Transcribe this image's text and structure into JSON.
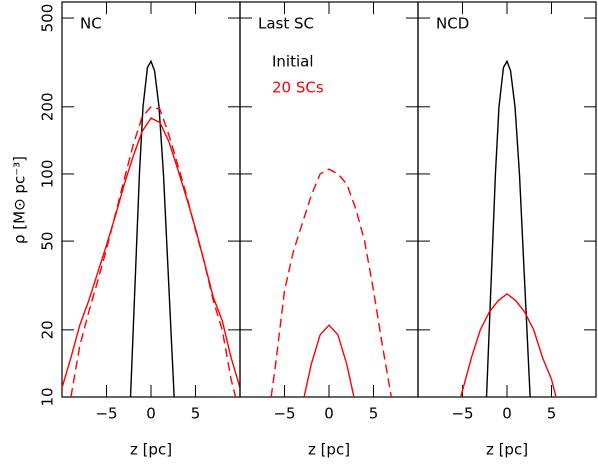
{
  "chart_data": [
    {
      "type": "line",
      "title": "NC",
      "xlabel": "z [pc]",
      "ylabel": "ρ [M⊙ pc⁻³]",
      "xlim": [
        -10,
        10
      ],
      "xticks": [
        {
          "value": -5,
          "label": "−5"
        },
        0,
        5
      ],
      "ylim": [
        10,
        590
      ],
      "yticks": [
        10,
        20,
        50,
        100,
        200,
        500
      ],
      "ylog": true,
      "series": [
        {
          "color": "#000000",
          "x": [
            -2.3,
            -1.3,
            -0.9,
            -0.4,
            0,
            0.4,
            0.9,
            1.4,
            2.6
          ],
          "values": [
            10,
            100,
            200,
            300,
            320,
            290,
            200,
            100,
            10
          ]
        },
        {
          "color": "#ff0000",
          "x": [
            -10,
            -9,
            -8,
            -7,
            -6,
            -5,
            -4,
            -3,
            -2,
            -1,
            0,
            1,
            2,
            3,
            4,
            5,
            6,
            7,
            8,
            9,
            10
          ],
          "values": [
            11,
            15,
            21,
            27,
            36,
            48,
            65,
            90,
            120,
            155,
            178,
            170,
            140,
            105,
            78,
            57,
            40,
            28,
            22,
            15,
            11
          ]
        },
        {
          "color": "#ff0000",
          "dash": true,
          "x": [
            -9,
            -8,
            -7,
            -6,
            -5,
            -4,
            -3,
            -2,
            -1,
            0,
            1,
            2,
            3,
            4,
            5,
            6,
            7,
            8,
            9,
            9.5
          ],
          "values": [
            10,
            17,
            24,
            33,
            46,
            66,
            95,
            135,
            180,
            200,
            195,
            150,
            110,
            80,
            56,
            40,
            27,
            20,
            12,
            10
          ]
        }
      ]
    },
    {
      "type": "line",
      "title": "Last SC",
      "xlabel": "z [pc]",
      "xlim": [
        -10,
        10
      ],
      "xticks": [
        {
          "value": -5,
          "label": "−5"
        },
        0,
        5
      ],
      "ylim": [
        10,
        590
      ],
      "yticks": [
        10,
        20,
        50,
        100,
        200,
        500
      ],
      "ylog": true,
      "legend": "upper left",
      "series": [
        {
          "name": "Initial",
          "color": "#000000",
          "x": [],
          "values": []
        },
        {
          "name": "20 SCs",
          "color": "#ff0000",
          "x": [
            -2.8,
            -2,
            -1,
            0,
            1,
            2,
            2.8
          ],
          "values": [
            10,
            14,
            19,
            21,
            19,
            14,
            10
          ]
        },
        {
          "color": "#ff0000",
          "dash": true,
          "x": [
            -6.5,
            -6,
            -5,
            -4,
            -3,
            -2,
            -1,
            0,
            1,
            2,
            3,
            4,
            5,
            6,
            7
          ],
          "values": [
            10,
            14,
            30,
            45,
            60,
            80,
            100,
            105,
            100,
            90,
            70,
            50,
            30,
            17,
            10
          ]
        }
      ]
    },
    {
      "type": "line",
      "title": "NCD",
      "xlabel": "z [pc]",
      "xlim": [
        -10,
        10
      ],
      "xticks": [
        {
          "value": -5,
          "label": "−5"
        },
        0,
        5
      ],
      "ylim": [
        10,
        590
      ],
      "yticks": [
        10,
        20,
        50,
        100,
        200,
        500
      ],
      "ylog": true,
      "series": [
        {
          "color": "#000000",
          "x": [
            -2.3,
            -1.3,
            -0.9,
            -0.4,
            0,
            0.4,
            0.9,
            1.4,
            2.6
          ],
          "values": [
            10,
            100,
            200,
            300,
            320,
            290,
            200,
            100,
            10
          ]
        },
        {
          "color": "#ff0000",
          "x": [
            -5.2,
            -4,
            -3,
            -2,
            -1,
            0,
            1,
            2,
            3,
            4,
            5,
            5.5
          ],
          "values": [
            10,
            15,
            20,
            24,
            27,
            29,
            27,
            24,
            20,
            15,
            12,
            10
          ]
        }
      ]
    }
  ]
}
